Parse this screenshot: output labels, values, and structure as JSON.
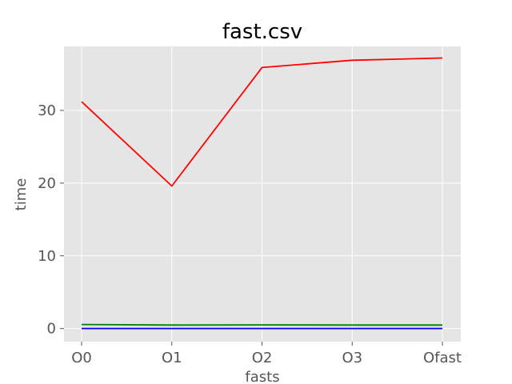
{
  "chart_data": {
    "type": "line",
    "title": "fast.csv",
    "xlabel": "fasts",
    "ylabel": "time",
    "categories": [
      "O0",
      "O1",
      "O2",
      "O3",
      "Ofast"
    ],
    "ylim": [
      -1.8,
      38.8
    ],
    "yticks": [
      0,
      10,
      20,
      30
    ],
    "grid": true,
    "legend": "none",
    "background": "#e5e5e5",
    "series": [
      {
        "color": "#ff0000",
        "values": [
          31.2,
          19.6,
          35.9,
          36.9,
          37.2
        ]
      },
      {
        "color": "#008000",
        "values": [
          0.55,
          0.48,
          0.5,
          0.48,
          0.48
        ]
      },
      {
        "color": "#0000ff",
        "values": [
          0.0,
          0.0,
          0.0,
          0.0,
          0.0
        ]
      }
    ]
  }
}
